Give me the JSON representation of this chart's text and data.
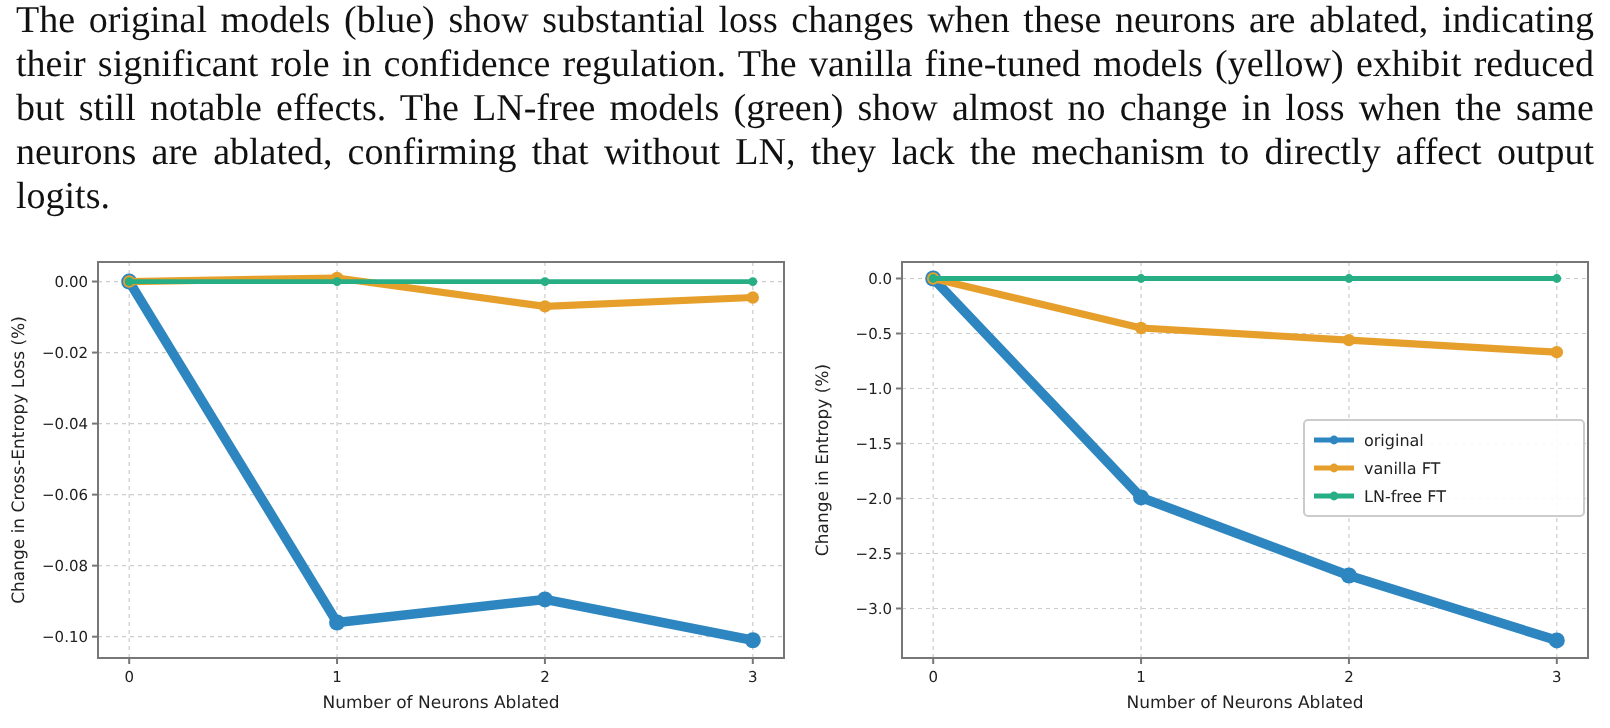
{
  "chart_data": [
    {
      "type": "line",
      "annotations": [
        "The original models (blue) show substantial loss changes when these neurons are ablated, indicating their significant role in confidence regulation. The vanilla fine-tuned models (yellow) exhibit reduced but still notable effects. The LN-free models (green) show almost no change in loss when the same neurons are ablated, confirming that without LN, they lack the mechanism to directly affect output logits."
      ],
      "xlabel": "Number of Neurons Ablated",
      "ylabel": "Change in Cross-Entropy Loss (%)",
      "x": [
        0,
        1,
        2,
        3
      ],
      "xlim": [
        -0.15,
        3.15
      ],
      "xticks": [
        0,
        1,
        2,
        3
      ],
      "ylim": [
        -0.106,
        0.0055
      ],
      "yticks": [
        {
          "value": 0,
          "label": "0.00"
        },
        {
          "value": -0.02,
          "label": "−0.02"
        },
        {
          "value": -0.04,
          "label": "−0.04"
        },
        {
          "value": -0.06,
          "label": "−0.06"
        },
        {
          "value": -0.08,
          "label": "−0.08"
        },
        {
          "value": -0.1,
          "label": "−0.10"
        }
      ],
      "grid": true,
      "marker": "circle",
      "legend": false,
      "series": [
        {
          "color": "#2e86c1",
          "values": [
            0,
            -0.096,
            -0.0895,
            -0.101
          ]
        },
        {
          "color": "#e69f2a",
          "values": [
            0,
            0.001,
            -0.007,
            -0.0045
          ]
        },
        {
          "color": "#27ae84",
          "values": [
            0,
            0,
            0,
            0
          ]
        }
      ]
    },
    {
      "type": "line",
      "xlabel": "Number of Neurons Ablated",
      "ylabel": "Change in Entropy (%)",
      "x": [
        0,
        1,
        2,
        3
      ],
      "xlim": [
        -0.15,
        3.15
      ],
      "xticks": [
        0,
        1,
        2,
        3
      ],
      "ylim": [
        -3.45,
        0.15
      ],
      "yticks": [
        {
          "value": 0,
          "label": "0.0"
        },
        {
          "value": -0.5,
          "label": "−0.5"
        },
        {
          "value": -1,
          "label": "−1.0"
        },
        {
          "value": -1.5,
          "label": "−1.5"
        },
        {
          "value": -2,
          "label": "−2.0"
        },
        {
          "value": -2.5,
          "label": "−2.5"
        },
        {
          "value": -3,
          "label": "−3.0"
        }
      ],
      "grid": true,
      "marker": "circle",
      "legend": "center right",
      "series": [
        {
          "name": "original",
          "color": "#2e86c1",
          "values": [
            0,
            -1.99,
            -2.7,
            -3.29
          ]
        },
        {
          "name": "vanilla FT",
          "color": "#e69f2a",
          "values": [
            0,
            -0.45,
            -0.56,
            -0.67
          ]
        },
        {
          "name": "LN-free FT",
          "color": "#27ae84",
          "values": [
            0,
            0,
            0,
            0
          ]
        }
      ]
    }
  ]
}
